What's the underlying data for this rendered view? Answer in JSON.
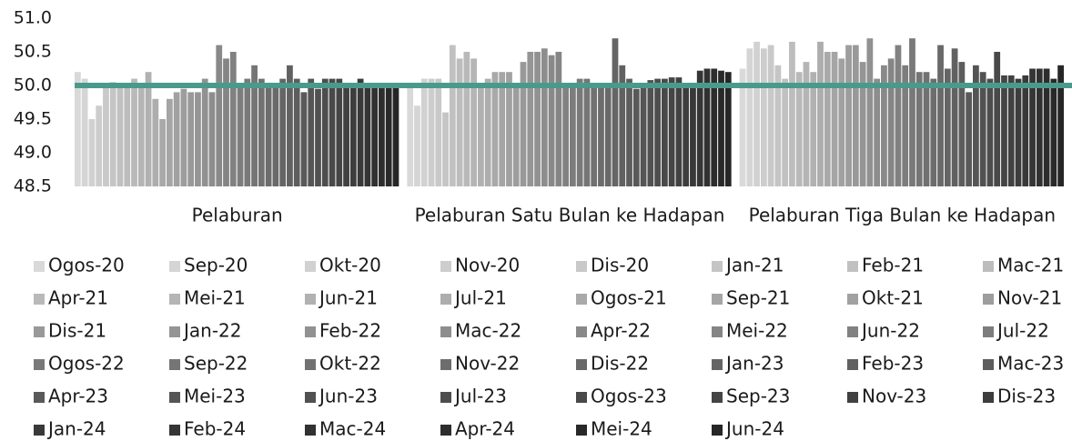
{
  "chart_data": {
    "type": "bar",
    "categories": [
      "Pelaburan",
      "Pelaburan Satu Bulan ke Hadapan",
      "Pelaburan Tiga Bulan ke Hadapan"
    ],
    "ylim": [
      48.5,
      51.0
    ],
    "yticks": [
      48.5,
      {
        "value": 49.0,
        "label": "49.0"
      },
      49.5,
      {
        "value": 50.0,
        "label": "50.0"
      },
      50.5,
      {
        "value": 51.0,
        "label": "51.0"
      }
    ],
    "reference_line": {
      "value": 50.0,
      "color": "#4a9a8c"
    },
    "series": [
      {
        "name": "Ogos-20",
        "color": "#d9d9d9",
        "values": [
          50.2,
          50.0,
          50.25
        ]
      },
      {
        "name": "Sep-20",
        "color": "#d5d5d5",
        "values": [
          50.1,
          49.7,
          50.55
        ]
      },
      {
        "name": "Okt-20",
        "color": "#d1d1d1",
        "values": [
          49.5,
          50.1,
          50.65
        ]
      },
      {
        "name": "Nov-20",
        "color": "#cdcdcd",
        "values": [
          49.7,
          50.1,
          50.55
        ]
      },
      {
        "name": "Dis-20",
        "color": "#c9c9c9",
        "values": [
          50.0,
          50.1,
          50.6
        ]
      },
      {
        "name": "Jan-21",
        "color": "#c5c5c5",
        "values": [
          50.05,
          49.6,
          50.3
        ]
      },
      {
        "name": "Feb-21",
        "color": "#c1c1c1",
        "values": [
          50.0,
          50.6,
          50.1
        ]
      },
      {
        "name": "Mac-21",
        "color": "#bdbdbd",
        "values": [
          50.0,
          50.4,
          50.65
        ]
      },
      {
        "name": "Apr-21",
        "color": "#b9b9b9",
        "values": [
          50.1,
          50.5,
          50.2
        ]
      },
      {
        "name": "Mei-21",
        "color": "#b5b5b5",
        "values": [
          50.0,
          50.4,
          50.35
        ]
      },
      {
        "name": "Jun-21",
        "color": "#b1b1b1",
        "values": [
          50.2,
          50.0,
          50.2
        ]
      },
      {
        "name": "Jul-21",
        "color": "#adadad",
        "values": [
          49.8,
          50.1,
          50.65
        ]
      },
      {
        "name": "Ogos-21",
        "color": "#a9a9a9",
        "values": [
          49.5,
          50.2,
          50.5
        ]
      },
      {
        "name": "Sep-21",
        "color": "#a5a5a5",
        "values": [
          49.8,
          50.2,
          50.5
        ]
      },
      {
        "name": "Okt-21",
        "color": "#a1a1a1",
        "values": [
          49.9,
          50.2,
          50.4
        ]
      },
      {
        "name": "Nov-21",
        "color": "#9d9d9d",
        "values": [
          49.95,
          50.0,
          50.6
        ]
      },
      {
        "name": "Dis-21",
        "color": "#999999",
        "values": [
          49.9,
          50.35,
          50.6
        ]
      },
      {
        "name": "Jan-22",
        "color": "#959595",
        "values": [
          49.9,
          50.5,
          50.35
        ]
      },
      {
        "name": "Feb-22",
        "color": "#919191",
        "values": [
          50.1,
          50.5,
          50.7
        ]
      },
      {
        "name": "Mac-22",
        "color": "#8d8d8d",
        "values": [
          49.9,
          50.55,
          50.1
        ]
      },
      {
        "name": "Apr-22",
        "color": "#898989",
        "values": [
          50.6,
          50.45,
          50.3
        ]
      },
      {
        "name": "Mei-22",
        "color": "#858585",
        "values": [
          50.4,
          50.5,
          50.4
        ]
      },
      {
        "name": "Jun-22",
        "color": "#818181",
        "values": [
          50.5,
          50.0,
          50.6
        ]
      },
      {
        "name": "Jul-22",
        "color": "#7d7d7d",
        "values": [
          50.0,
          50.0,
          50.3
        ]
      },
      {
        "name": "Ogos-22",
        "color": "#797979",
        "values": [
          50.1,
          50.1,
          50.7
        ]
      },
      {
        "name": "Sep-22",
        "color": "#757575",
        "values": [
          50.3,
          50.1,
          50.2
        ]
      },
      {
        "name": "Okt-22",
        "color": "#717171",
        "values": [
          50.1,
          50.0,
          50.2
        ]
      },
      {
        "name": "Nov-22",
        "color": "#6d6d6d",
        "values": [
          50.0,
          50.0,
          50.1
        ]
      },
      {
        "name": "Dis-22",
        "color": "#696969",
        "values": [
          50.0,
          50.0,
          50.6
        ]
      },
      {
        "name": "Jan-23",
        "color": "#656565",
        "values": [
          50.1,
          50.7,
          50.25
        ]
      },
      {
        "name": "Feb-23",
        "color": "#616161",
        "values": [
          50.3,
          50.3,
          50.55
        ]
      },
      {
        "name": "Mac-23",
        "color": "#5d5d5d",
        "values": [
          50.1,
          50.1,
          50.35
        ]
      },
      {
        "name": "Apr-23",
        "color": "#595959",
        "values": [
          49.9,
          49.95,
          49.9
        ]
      },
      {
        "name": "Mei-23",
        "color": "#555555",
        "values": [
          50.1,
          50.0,
          50.3
        ]
      },
      {
        "name": "Jun-23",
        "color": "#515151",
        "values": [
          49.95,
          50.08,
          50.2
        ]
      },
      {
        "name": "Jul-23",
        "color": "#4d4d4d",
        "values": [
          50.1,
          50.1,
          50.1
        ]
      },
      {
        "name": "Ogos-23",
        "color": "#494949",
        "values": [
          50.1,
          50.1,
          50.5
        ]
      },
      {
        "name": "Sep-23",
        "color": "#454545",
        "values": [
          50.1,
          50.12,
          50.15
        ]
      },
      {
        "name": "Nov-23",
        "color": "#414141",
        "values": [
          50.0,
          50.12,
          50.15
        ]
      },
      {
        "name": "Dis-23",
        "color": "#3d3d3d",
        "values": [
          50.0,
          50.0,
          50.1
        ]
      },
      {
        "name": "Jan-24",
        "color": "#393939",
        "values": [
          50.1,
          50.0,
          50.15
        ]
      },
      {
        "name": "Feb-24",
        "color": "#353535",
        "values": [
          50.0,
          50.22,
          50.25
        ]
      },
      {
        "name": "Mac-24",
        "color": "#313131",
        "values": [
          50.0,
          50.25,
          50.25
        ]
      },
      {
        "name": "Apr-24",
        "color": "#2d2d2d",
        "values": [
          50.0,
          50.25,
          50.25
        ]
      },
      {
        "name": "Mei-24",
        "color": "#292929",
        "values": [
          50.0,
          50.22,
          50.1
        ]
      },
      {
        "name": "Jun-24",
        "color": "#262626",
        "values": [
          50.0,
          50.2,
          50.3
        ]
      }
    ]
  }
}
